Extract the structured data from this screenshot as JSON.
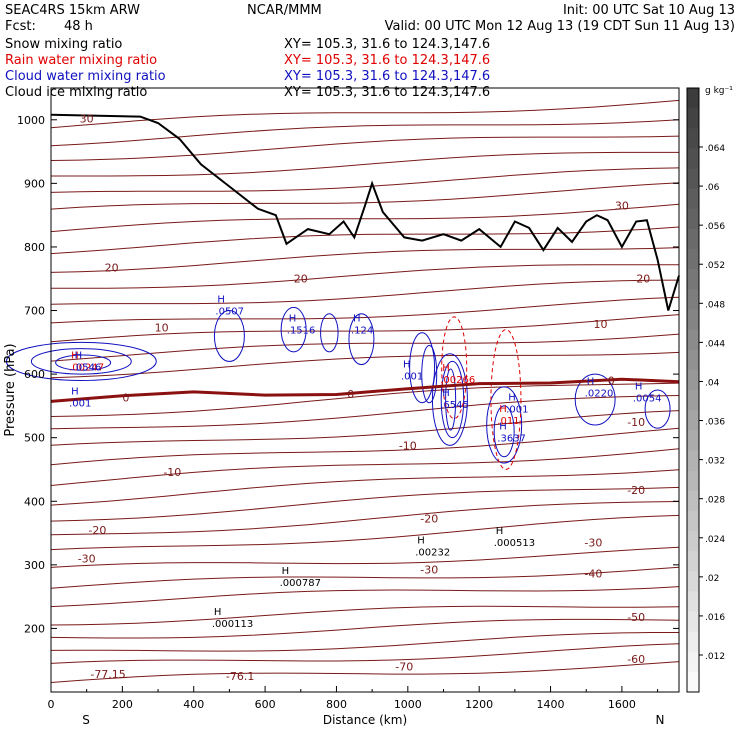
{
  "header": {
    "model": "SEAC4RS 15km ARW",
    "org": "NCAR/MMM",
    "init": "Init: 00 UTC Sat 10 Aug 13",
    "fcst_label": "Fcst:",
    "fcst_value": "48 h",
    "valid": "Valid: 00 UTC Mon 12 Aug 13 (19 CDT Sun 11 Aug 13)"
  },
  "legend": [
    {
      "label": "Snow mixing ratio",
      "color": "#000000",
      "xy": "XY= 105.3, 31.6 to 124.3,147.6"
    },
    {
      "label": "Rain water mixing ratio",
      "color": "#e00000",
      "xy": "XY= 105.3, 31.6 to 124.3,147.6"
    },
    {
      "label": "Cloud water mixing ratio",
      "color": "#1010c0",
      "xy": "XY= 105.3, 31.6 to 124.3,147.6"
    },
    {
      "label": "Cloud ice mixing ratio",
      "color": "#000000",
      "xy": "XY= 105.3, 31.6 to 124.3,147.6"
    }
  ],
  "colorbar": {
    "unit": "g kg⁻¹",
    "ticks": [
      ".064",
      ".06",
      ".056",
      ".052",
      ".048",
      ".044",
      ".04",
      ".036",
      ".032",
      ".028",
      ".024",
      ".02",
      ".016",
      ".012"
    ]
  },
  "chart_data": {
    "type": "cross-section",
    "xlabel": "Distance (km)",
    "ylabel": "Pressure (hPa)",
    "xlim": [
      0,
      1760
    ],
    "ylim": [
      1050,
      100
    ],
    "x_ticks": [
      "0",
      "200",
      "400",
      "600",
      "800",
      "1000",
      "1200",
      "1400",
      "1600"
    ],
    "y_ticks": [
      "200",
      "300",
      "400",
      "500",
      "600",
      "700",
      "800",
      "900",
      "1000"
    ],
    "end_labels": {
      "left": "S",
      "right": "N"
    },
    "freezing_level": {
      "label": "0",
      "x": [
        0,
        200,
        400,
        600,
        800,
        1000,
        1200,
        1400,
        1600,
        1760
      ],
      "p": [
        557,
        566,
        572,
        567,
        568,
        577,
        585,
        586,
        592,
        588
      ]
    },
    "isotherm_labels": [
      {
        "text": "-77.15",
        "x": 160,
        "p": 128
      },
      {
        "text": "-76.1",
        "x": 530,
        "p": 125
      },
      {
        "text": "-70",
        "x": 990,
        "p": 140
      },
      {
        "text": "-60",
        "x": 1640,
        "p": 152
      },
      {
        "text": "-50",
        "x": 1640,
        "p": 218
      },
      {
        "text": "-40",
        "x": 1520,
        "p": 286
      },
      {
        "text": "-30",
        "x": 1520,
        "p": 335
      },
      {
        "text": "-30",
        "x": 100,
        "p": 310
      },
      {
        "text": "-20",
        "x": 130,
        "p": 355
      },
      {
        "text": "-20",
        "x": 1060,
        "p": 373
      },
      {
        "text": "-20",
        "x": 1640,
        "p": 418
      },
      {
        "text": "-10",
        "x": 340,
        "p": 446
      },
      {
        "text": "-10",
        "x": 1000,
        "p": 488
      },
      {
        "text": "-10",
        "x": 1640,
        "p": 525
      },
      {
        "text": "0",
        "x": 210,
        "p": 563
      },
      {
        "text": "0",
        "x": 840,
        "p": 569
      },
      {
        "text": "0",
        "x": 1570,
        "p": 590
      },
      {
        "text": "10",
        "x": 310,
        "p": 673
      },
      {
        "text": "10",
        "x": 1540,
        "p": 679
      },
      {
        "text": "20",
        "x": 170,
        "p": 768
      },
      {
        "text": "20",
        "x": 700,
        "p": 750
      },
      {
        "text": "20",
        "x": 1660,
        "p": 750
      },
      {
        "text": "-30",
        "x": 1060,
        "p": 293
      },
      {
        "text": "30",
        "x": 1600,
        "p": 865
      },
      {
        "text": "30",
        "x": 100,
        "p": 1002
      }
    ],
    "maxima_labels": [
      {
        "text": ".000113",
        "x": 490,
        "p": 205,
        "color": "#000000"
      },
      {
        "text": ".000787",
        "x": 680,
        "p": 270,
        "color": "#000000"
      },
      {
        "text": ".00232",
        "x": 1060,
        "p": 318,
        "color": "#000000"
      },
      {
        "text": ".000513",
        "x": 1280,
        "p": 333,
        "color": "#000000"
      },
      {
        "text": ".001",
        "x": 90,
        "p": 552,
        "color": "#1010c0"
      },
      {
        "text": ".00247",
        "x": 90,
        "p": 609,
        "color": "#e00000"
      },
      {
        "text": ".0546",
        "x": 100,
        "p": 609,
        "color": "#1010c0"
      },
      {
        "text": ".0507",
        "x": 500,
        "p": 697,
        "color": "#1010c0"
      },
      {
        "text": ".1516",
        "x": 700,
        "p": 667,
        "color": "#1010c0"
      },
      {
        "text": ".124",
        "x": 880,
        "p": 667,
        "color": "#1010c0"
      },
      {
        "text": ".001",
        "x": 1020,
        "p": 595,
        "color": "#1010c0"
      },
      {
        "text": ".6545",
        "x": 1130,
        "p": 550,
        "color": "#1010c0"
      },
      {
        "text": ".00266",
        "x": 1130,
        "p": 589,
        "color": "#e00000"
      },
      {
        "text": ".3637",
        "x": 1290,
        "p": 497,
        "color": "#1010c0"
      },
      {
        "text": ".011",
        "x": 1290,
        "p": 525,
        "color": "#e00000"
      },
      {
        "text": ".001",
        "x": 1315,
        "p": 543,
        "color": "#1010c0"
      },
      {
        "text": ".0220",
        "x": 1535,
        "p": 568,
        "color": "#1010c0"
      },
      {
        "text": ".0054",
        "x": 1670,
        "p": 560,
        "color": "#1010c0"
      }
    ],
    "terrain": {
      "x": [
        0,
        250,
        300,
        360,
        420,
        500,
        580,
        630,
        660,
        720,
        780,
        820,
        850,
        880,
        900,
        930,
        990,
        1040,
        1100,
        1150,
        1200,
        1260,
        1300,
        1340,
        1380,
        1420,
        1460,
        1500,
        1530,
        1560,
        1600,
        1640,
        1670,
        1700,
        1730,
        1760
      ],
      "p": [
        1008,
        1005,
        995,
        970,
        930,
        895,
        860,
        850,
        805,
        828,
        820,
        840,
        815,
        865,
        900,
        855,
        815,
        810,
        820,
        810,
        828,
        800,
        840,
        830,
        795,
        830,
        808,
        840,
        850,
        842,
        800,
        840,
        842,
        780,
        700,
        755
      ]
    }
  }
}
